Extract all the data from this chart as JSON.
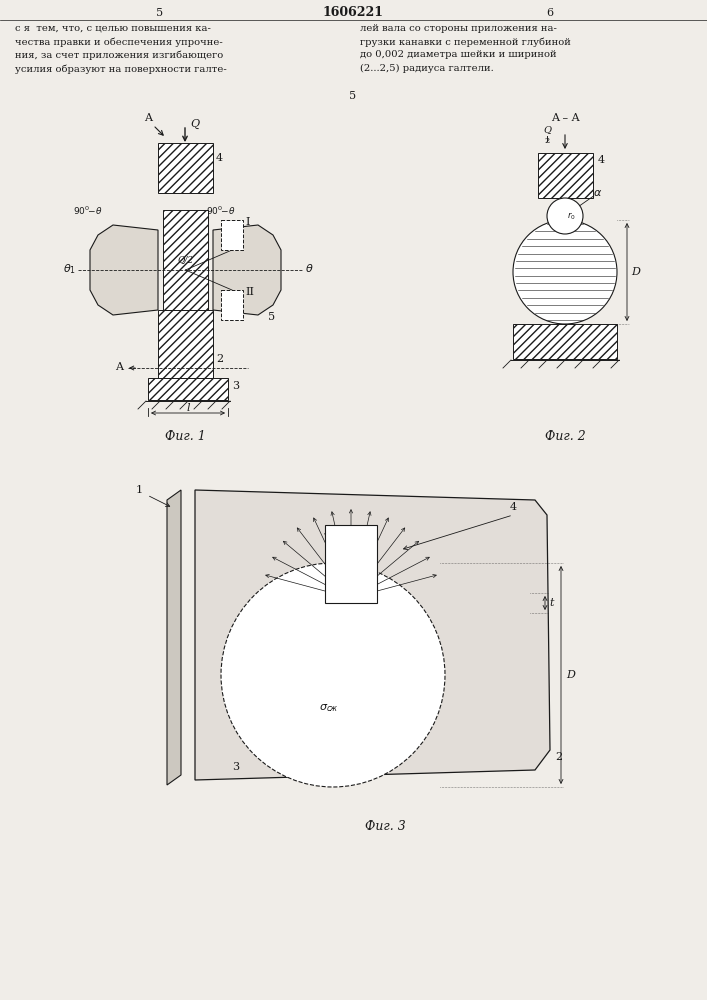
{
  "bg_color": "#f0ede8",
  "line_color": "#1a1a1a",
  "page_title": "1606221",
  "fig1_caption": "Фиг. 1",
  "fig2_caption": "Фиг. 2",
  "fig3_caption": "Фиг. 3",
  "text_left": "с я  тем, что, с целью повышения ка-\nчества правки и обеспечения упрочне-\nния, за счет приложения изгибающего\nусилия образуют на поверхности галте-",
  "text_right": "лей вала со стороны приложения на-\nгрузки канавки с переменной глубиной\nдо 0,002 диаметра шейки и шириной\n(2...2,5) радиуса галтели."
}
